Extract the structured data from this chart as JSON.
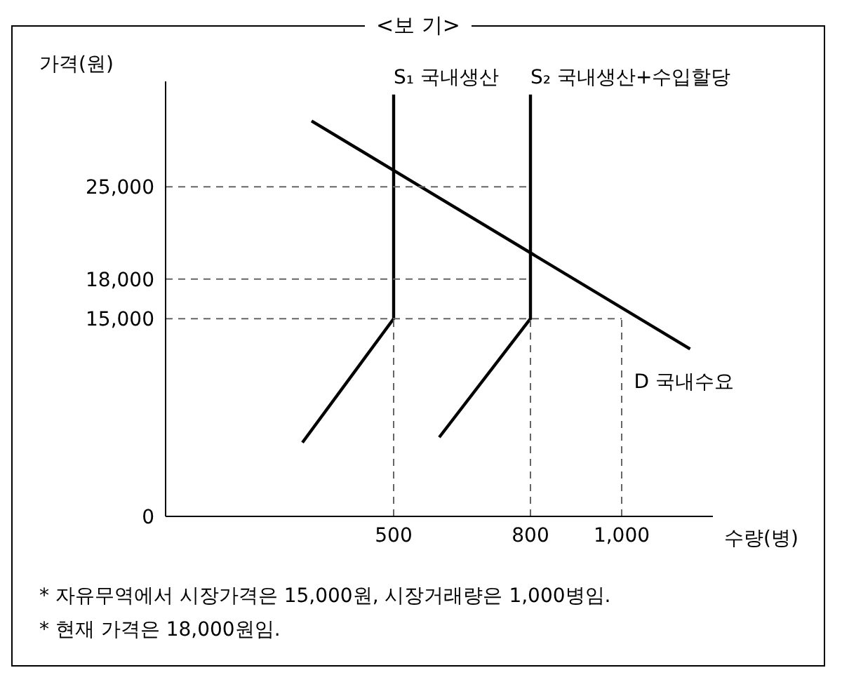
{
  "chart_data": {
    "type": "line",
    "title": "<보 기>",
    "xlabel": "수량(병)",
    "ylabel": "가격(원)",
    "xlim": [
      0,
      1200
    ],
    "ylim": [
      0,
      33000
    ],
    "xticks": [
      500,
      800,
      {
        "value": 1000,
        "label": "1,000"
      }
    ],
    "yticks": [
      0,
      {
        "value": 15000,
        "label": "15,000"
      },
      {
        "value": 18000,
        "label": "18,000"
      },
      {
        "value": 25000,
        "label": "25,000"
      }
    ],
    "grid": false,
    "legend": false,
    "marker": "none",
    "series": [
      {
        "name": "S₁ 국내생산",
        "color": "#000000",
        "line_style": "solid",
        "x": [
          300,
          500,
          500
        ],
        "values": [
          5600,
          15000,
          32000
        ]
      },
      {
        "name": "S₂ 국내생산+수입할당",
        "color": "#000000",
        "line_style": "solid",
        "x": [
          600,
          800,
          800
        ],
        "values": [
          6000,
          15000,
          32000
        ]
      },
      {
        "name": "D 국내수요",
        "color": "#000000",
        "line_style": "solid",
        "x": [
          320,
          1150
        ],
        "values": [
          30000,
          12700
        ]
      },
      {
        "color": "#666666",
        "line_style": "dashed",
        "x": [
          0,
          800
        ],
        "values": [
          25000,
          25000
        ]
      },
      {
        "color": "#666666",
        "line_style": "dashed",
        "x": [
          0,
          800
        ],
        "values": [
          18000,
          18000
        ]
      },
      {
        "color": "#666666",
        "line_style": "dashed",
        "x": [
          0,
          1000
        ],
        "values": [
          15000,
          15000
        ]
      },
      {
        "color": "#666666",
        "line_style": "dashed",
        "x": [
          500,
          500
        ],
        "values": [
          0,
          15000
        ]
      },
      {
        "color": "#666666",
        "line_style": "dashed",
        "x": [
          800,
          800
        ],
        "values": [
          0,
          15000
        ]
      },
      {
        "color": "#666666",
        "line_style": "dashed",
        "x": [
          1000,
          1000
        ],
        "values": [
          0,
          15000
        ]
      }
    ],
    "annotations": [
      "* 자유무역에서 시장가격은 15,000원, 시장거래량은 1,000병임.",
      "* 현재 가격은 18,000원임."
    ]
  }
}
